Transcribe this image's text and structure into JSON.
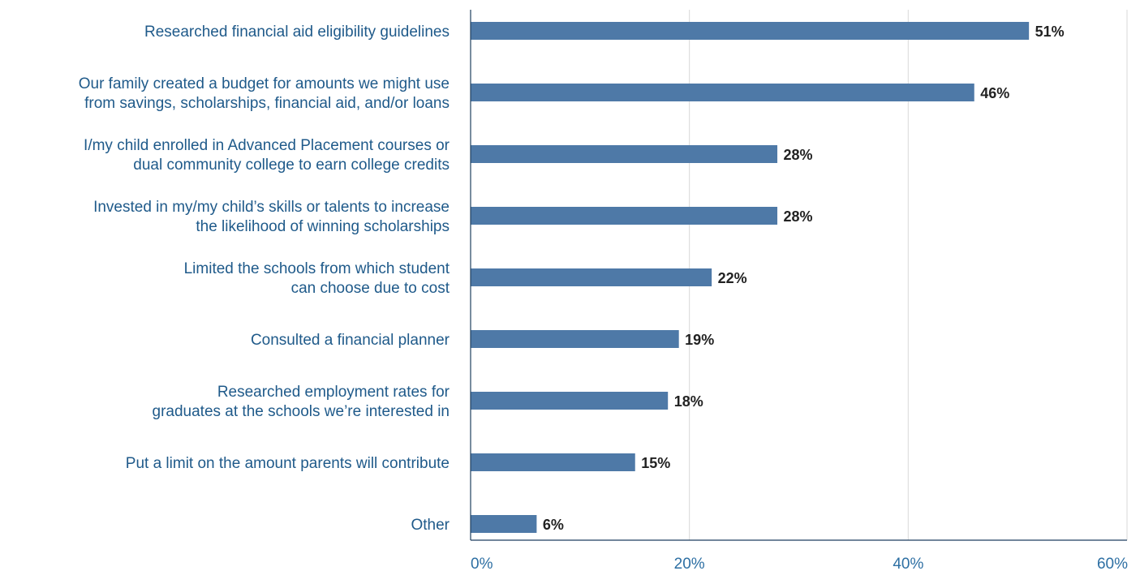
{
  "chart_data": {
    "type": "bar",
    "orientation": "horizontal",
    "title": "",
    "xlabel": "",
    "ylabel": "",
    "categories": [
      [
        "Researched financial aid eligibility guidelines"
      ],
      [
        "Our family created a budget for amounts we might use",
        "from savings, scholarships, financial aid, and/or loans"
      ],
      [
        "I/my child enrolled in Advanced Placement courses or",
        "dual community college to earn college credits"
      ],
      [
        "Invested in my/my child’s skills or talents to increase",
        "the likelihood of winning scholarships"
      ],
      [
        "Limited the schools from which student",
        "can choose due to cost"
      ],
      [
        "Consulted a financial planner"
      ],
      [
        "Researched employment rates for",
        "graduates at the schools we’re interested in"
      ],
      [
        "Put a limit on the amount parents will contribute"
      ],
      [
        "Other"
      ]
    ],
    "values": [
      51,
      46,
      28,
      28,
      22,
      19,
      18,
      15,
      6
    ],
    "value_labels": [
      "51%",
      "46%",
      "28%",
      "28%",
      "22%",
      "19%",
      "18%",
      "15%",
      "6%"
    ],
    "xlim": [
      0,
      60
    ],
    "ticks": [
      0,
      20,
      40,
      60
    ],
    "tick_labels": [
      "0%",
      "20%",
      "40%",
      "60%"
    ],
    "grid": true,
    "legend": "none",
    "colors": {
      "bar": "#4e79a7",
      "category_text": "#1f5a8a",
      "value_text": "#222222",
      "tick_text": "#2d6fa3",
      "grid": "#d9d9d9",
      "axis": "#1f3f5f"
    }
  }
}
